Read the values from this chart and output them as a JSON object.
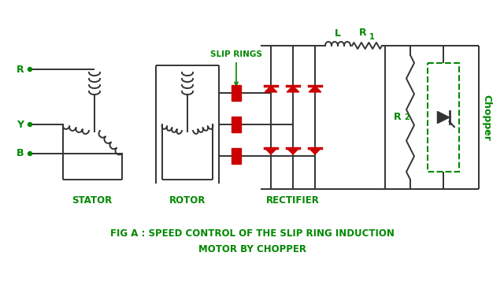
{
  "bg_color": "#ffffff",
  "line_color": "#333333",
  "green_color": "#008800",
  "red_color": "#cc0000",
  "title_line1": "FIG A : SPEED CONTROL OF THE SLIP RING INDUCTION",
  "title_line2": "MOTOR BY CHOPPER",
  "label_stator": "STATOR",
  "label_rotor": "ROTOR",
  "label_rectifier": "RECTIFIER",
  "label_slip_rings": "SLIP RINGS",
  "label_L": "L",
  "label_R1": "R",
  "label_R1_sub": "1",
  "label_R2": "R",
  "label_R2_sub": "2",
  "label_chopper": "Chopper",
  "label_R_term": "R",
  "label_Y_term": "Y",
  "label_B_term": "B",
  "figsize": [
    6.4,
    3.58
  ],
  "dpi": 100
}
